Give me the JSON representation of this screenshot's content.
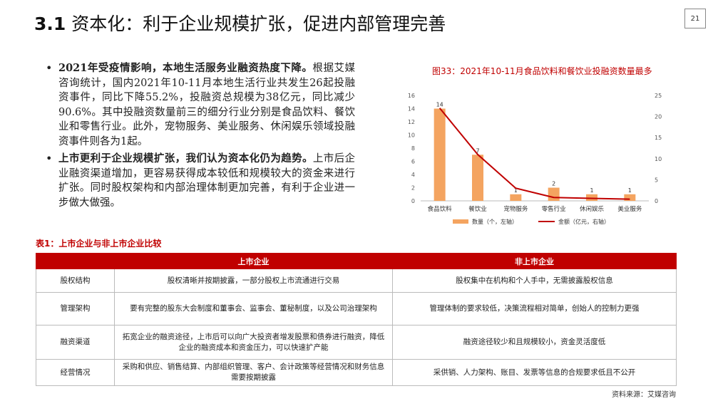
{
  "slide": {
    "title_num": "3.1",
    "title_text": "资本化：利于企业规模扩张，促进内部管理完善",
    "page_number": "21"
  },
  "bullets": [
    {
      "bold": "2021年受疫情影响，本地生活服务业融资热度下降。",
      "text": "根据艾媒咨询统计，国内2021年10-11月本地生活行业共发生26起投融资事件，同比下降55.2%，投融资总规模为38亿元，同比减少90.6%。其中投融资数量前三的细分行业分别是食品饮料、餐饮业和零售行业。此外，宠物服务、美业服务、休闲娱乐领域投融资事件则各为1起。"
    },
    {
      "bold": "上市更利于企业规模扩张，我们认为资本化仍为趋势。",
      "text": "上市后企业融资渠道增加，更容易获得成本较低和规模较大的资金来进行扩张。同时股权架构和内部治理体制更加完善，有利于企业进一步做大做强。"
    }
  ],
  "chart_data": {
    "type": "bar",
    "title": "图33：2021年10-11月食品饮料和餐饮业投融资数量最多",
    "categories": [
      "食品饮料",
      "餐饮业",
      "宠物服务",
      "零售行业",
      "休闲娱乐",
      "美业服务"
    ],
    "series": [
      {
        "name": "数量（个，左轴）",
        "type": "bar",
        "axis": "left",
        "values": [
          14,
          7,
          1,
          2,
          1,
          1
        ],
        "color": "#f4a460"
      },
      {
        "name": "金额（亿元，右轴）",
        "type": "line",
        "axis": "right",
        "values": [
          22,
          11,
          3,
          0.8,
          0.6,
          0.4
        ],
        "color": "#c00000"
      }
    ],
    "y_left": {
      "min": 0,
      "max": 16,
      "ticks": [
        "0",
        "2",
        "4",
        "6",
        "8",
        "10",
        "12",
        "14",
        "16"
      ]
    },
    "y_right": {
      "min": 0,
      "max": 25,
      "ticks": [
        "0",
        "5",
        "10",
        "15",
        "20",
        "25"
      ]
    },
    "legend_placement": "bottom",
    "grid": false
  },
  "table": {
    "caption": "表1：上市企业与非上市企业比较",
    "headers": [
      "",
      "上市企业",
      "非上市企业"
    ],
    "rows": [
      [
        "股权结构",
        "股权清晰并按期披露，一部分股权上市流通进行交易",
        "股权集中在机构和个人手中，无需披露股权信息"
      ],
      [
        "管理架构",
        "要有完整的股东大会制度和董事会、监事会、董秘制度，以及公司治理架构",
        "管理体制的要求较低，决策流程相对简单，创始人的控制力更强"
      ],
      [
        "融资渠道",
        "拓宽企业的融资途径，上市后可以向广大投资者增发股票和债券进行融资，降低企业的融资成本和资金压力，可以快速扩产能",
        "融资途径较少和且规模较小，资金灵活度低"
      ],
      [
        "经营情况",
        "采购和供应、销售结算、内部组织管理、客户、会计政策等经营情况和财务信息需要按期披露",
        "采供销、人力架构、账目、发票等信息的合规要求低且不公开"
      ]
    ]
  },
  "source": "资料来源：艾媒咨询"
}
